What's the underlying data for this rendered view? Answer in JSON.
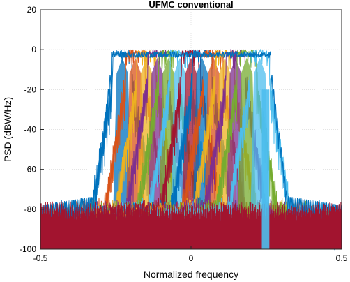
{
  "chart_data": {
    "type": "line",
    "title": "UFMC conventional",
    "xlabel": "Normalized frequency",
    "ylabel": "PSD (dBW/Hz)",
    "xlim": [
      -0.5,
      0.5
    ],
    "ylim": [
      -100,
      20
    ],
    "xticks": [
      -0.5,
      0,
      0.5
    ],
    "xtick_labels": [
      "-0.5",
      "0",
      "0.5"
    ],
    "yticks": [
      20,
      0,
      -20,
      -40,
      -60,
      -80,
      -100
    ],
    "ytick_labels": [
      "20",
      "0",
      "-20",
      "-40",
      "-60",
      "-80",
      "-100"
    ],
    "grid": true,
    "legend": "none",
    "colors": [
      "#0072BD",
      "#D95319",
      "#EDB120",
      "#7E2F8E",
      "#77AC30",
      "#4DBEEE",
      "#A2142F"
    ],
    "subband_centers": [
      -0.228,
      -0.185,
      -0.148,
      -0.112,
      -0.075,
      -0.037,
      0.0,
      0.037,
      0.075,
      0.112,
      0.148,
      0.185,
      0.228
    ],
    "subband_halfwidth": 0.032,
    "passband_level": 0,
    "floor_level": -80,
    "noise_floor_level": -100
  }
}
